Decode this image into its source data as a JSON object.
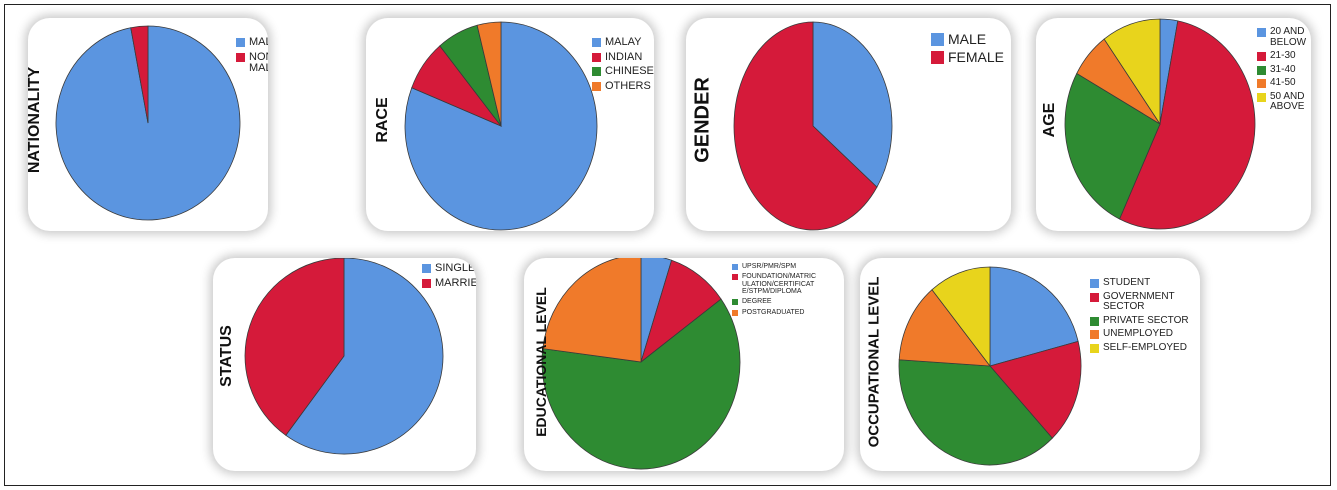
{
  "chart_data": [
    {
      "type": "pie",
      "title": "NATIONALITY",
      "categories": [
        "MALAYSIAN",
        "NON-MALAYSIAN"
      ],
      "values": [
        97,
        3
      ],
      "colors": [
        "#5b95e0",
        "#d51a3a"
      ],
      "legend_position": "top-right"
    },
    {
      "type": "pie",
      "title": "RACE",
      "categories": [
        "MALAY",
        "INDIAN",
        "CHINESE",
        "OTHERS"
      ],
      "values": [
        81,
        8,
        7,
        4
      ],
      "colors": [
        "#5b95e0",
        "#d51a3a",
        "#2e8b32",
        "#f07a2a"
      ],
      "legend_position": "top-right"
    },
    {
      "type": "pie",
      "title": "GENDER",
      "categories": [
        "MALE",
        "FEMALE"
      ],
      "values": [
        35,
        65
      ],
      "colors": [
        "#5b95e0",
        "#d51a3a"
      ],
      "legend_position": "top-right"
    },
    {
      "type": "pie",
      "title": "AGE",
      "categories": [
        "20 AND BELOW",
        "21-30",
        "31-40",
        "41-50",
        "50 AND ABOVE"
      ],
      "values": [
        3,
        54,
        26,
        7,
        10
      ],
      "colors": [
        "#5b95e0",
        "#d51a3a",
        "#2e8b32",
        "#f07a2a",
        "#e8d41c"
      ],
      "legend_position": "top-right"
    },
    {
      "type": "pie",
      "title": "STATUS",
      "categories": [
        "SINGLE",
        "MARRIED"
      ],
      "values": [
        60,
        40
      ],
      "colors": [
        "#5b95e0",
        "#d51a3a"
      ],
      "legend_position": "top-right"
    },
    {
      "type": "pie",
      "title": "EDUCATIONAL LEVEL",
      "categories": [
        "UPSR/PMR/SPM",
        "FOUNDATION/MATRIC ULATION/CERTIFICAT E/STPM/DIPLOMA",
        "DEGREE",
        "POSTGRADUATED"
      ],
      "values": [
        5,
        10,
        62,
        23
      ],
      "colors": [
        "#5b95e0",
        "#d51a3a",
        "#2e8b32",
        "#f07a2a"
      ],
      "legend_position": "top-right"
    },
    {
      "type": "pie",
      "title": "OCCUPATIONAL LEVEL",
      "categories": [
        "STUDENT",
        "GOVERNMENT SECTOR",
        "PRIVATE SECTOR",
        "UNEMPLOYED",
        "SELF-EMPLOYED"
      ],
      "values": [
        21,
        17,
        38,
        13,
        11
      ],
      "colors": [
        "#5b95e0",
        "#d51a3a",
        "#2e8b32",
        "#f07a2a",
        "#e8d41c"
      ],
      "legend_position": "top-right"
    }
  ]
}
